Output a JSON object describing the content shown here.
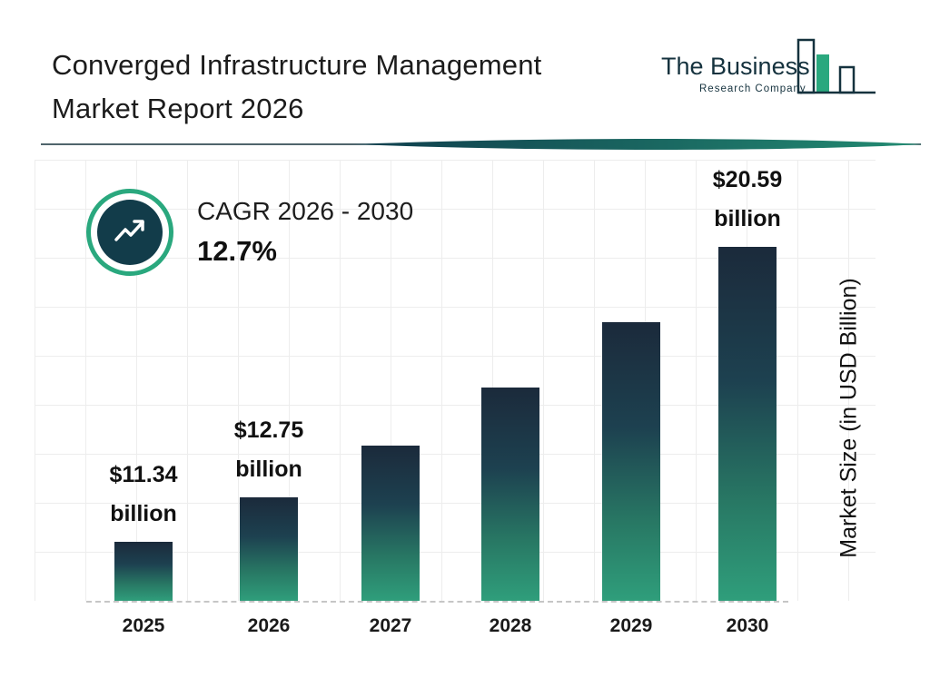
{
  "header": {
    "title_line1": "Converged Infrastructure Management",
    "title_line2": "Market Report 2026",
    "logo": {
      "name": "The Business",
      "subname": "Research Company"
    }
  },
  "cagr": {
    "label": "CAGR 2026 - 2030",
    "value": "12.7%"
  },
  "chart_data": {
    "type": "bar",
    "title": "Converged Infrastructure Management Market Report 2026",
    "categories": [
      "2025",
      "2026",
      "2027",
      "2028",
      "2029",
      "2030"
    ],
    "values": [
      11.34,
      12.75,
      14.37,
      16.19,
      18.25,
      20.59
    ],
    "data_labels": {
      "2025": {
        "line1": "$11.34",
        "line2": "billion"
      },
      "2026": {
        "line1": "$12.75",
        "line2": "billion"
      },
      "2030": {
        "line1": "$20.59",
        "line2": "billion"
      }
    },
    "xlabel": "",
    "ylabel": "Market Size (in USD Billion)",
    "ylim": [
      9.5,
      21
    ],
    "grid": true,
    "legend": false,
    "colors": {
      "bar_gradient_top": "#1b2a3b",
      "bar_gradient_bottom": "#2f9e7b",
      "accent_green": "#2aa87e",
      "dark_navy": "#14323f"
    }
  }
}
